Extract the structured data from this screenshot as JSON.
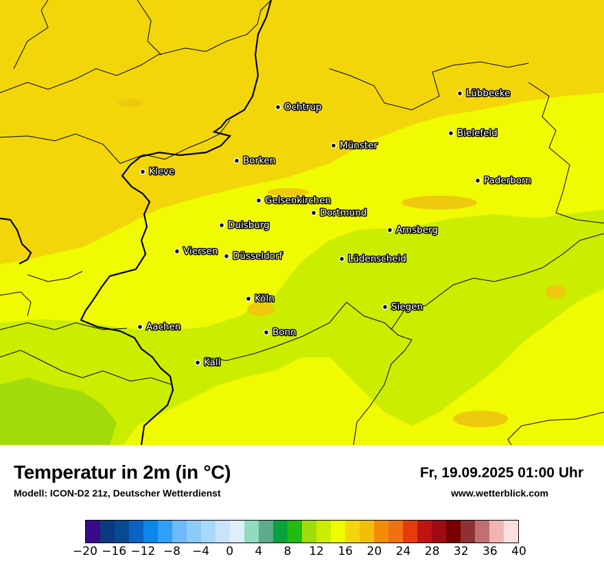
{
  "title": "Temperatur in 2m (in °C)",
  "model": "Modell: ICON-D2 21z, Deutscher Wetterdienst",
  "datetime": "Fr, 19.09.2025 01:00 Uhr",
  "website": "www.wetterblick.com",
  "map_colors": {
    "warm_zone": "#f2d60a",
    "mid_zone": "#f0fa00",
    "cool_zone": "#cbed00",
    "coolest_zone": "#a3db0a",
    "patch_orange": "#eec90e"
  },
  "cities": [
    "Lübbecke",
    "Ochtrup",
    "Bielefeld",
    "Münster",
    "Borken",
    "Kleve",
    "Paderborn",
    "Gelsenkirchen",
    "Dortmund",
    "Duisburg",
    "Arnsberg",
    "Viersen",
    "Düsseldorf",
    "Lüdenscheid",
    "Köln",
    "Siegen",
    "Aachen",
    "Bonn",
    "Kall"
  ],
  "legend": {
    "ticks": [
      "−20",
      "−16",
      "−12",
      "−8",
      "−4",
      "0",
      "4",
      "8",
      "12",
      "16",
      "20",
      "24",
      "28",
      "32",
      "36",
      "40"
    ],
    "colors": [
      "#3a0a8a",
      "#0a3a82",
      "#064a92",
      "#0a62c2",
      "#0a86ec",
      "#2ea0f8",
      "#6ebaf8",
      "#8ccaf8",
      "#a8d8fc",
      "#c8e4fc",
      "#deeefc",
      "#90dcbe",
      "#5cac8c",
      "#0aa23a",
      "#20bc12",
      "#a0dc0a",
      "#cbed00",
      "#f0fa00",
      "#f2d60a",
      "#f2be0a",
      "#f28c0a",
      "#f07014",
      "#e63c0a",
      "#be1414",
      "#a00a12",
      "#780000",
      "#8c3232",
      "#c07070",
      "#f0b4b4",
      "#fce0e0"
    ]
  }
}
